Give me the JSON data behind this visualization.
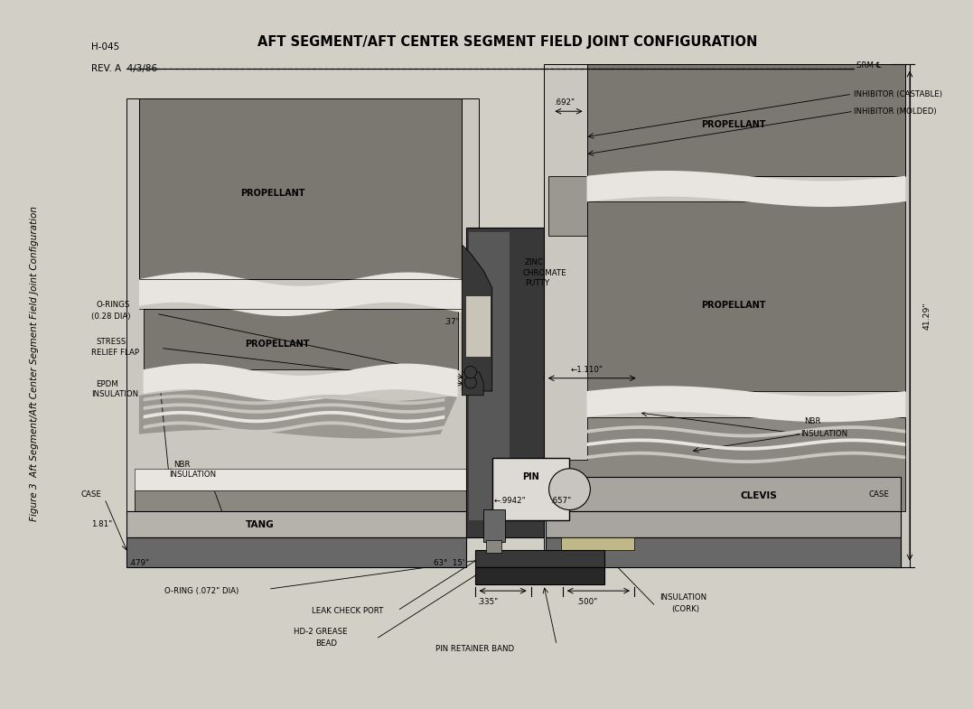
{
  "title": "AFT SEGMENT/AFT CENTER SEGMENT FIELD JOINT CONFIGURATION",
  "header_id": "H-045",
  "rev": "REV. A  4/3/86",
  "fig_caption": "Figure 3  Aft Segment/Aft Center Segment Field Joint Configuration",
  "bg": "#d2cfc7",
  "prop_dark": "#7a7870",
  "prop_med": "#9a9890",
  "nbr": "#8a8880",
  "tang": "#b5b2ac",
  "clevis": "#a8a5a0",
  "case_c": "#686868",
  "pin_c": "#dddad5",
  "joint_dark": "#383838",
  "joint_med": "#585858",
  "ins_light": "#cac7c0",
  "ins_wave1": "#b0ada8",
  "ins_wave2": "#989590",
  "white_ins": "#e8e5e0",
  "cork": "#c0b888"
}
